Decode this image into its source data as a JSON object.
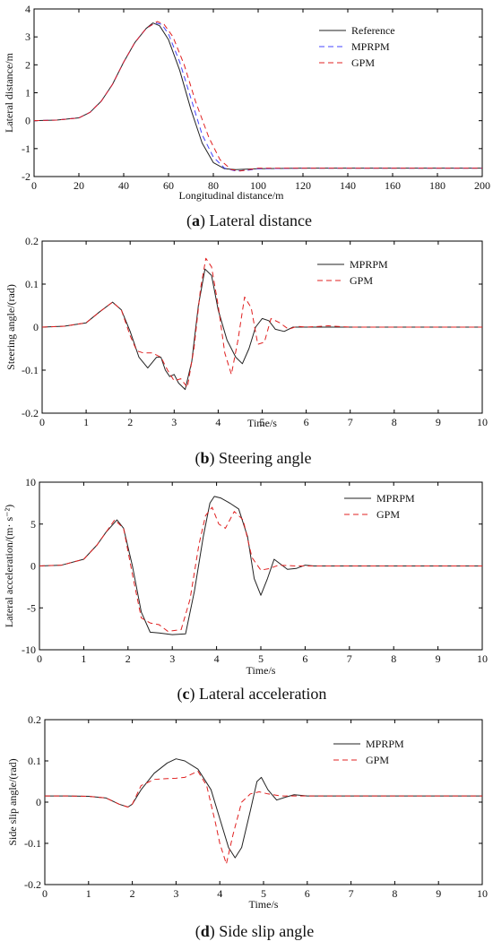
{
  "chart_data": [
    {
      "type": "line",
      "xlabel": "Longitudinal distance/m",
      "ylabel": "Lateral distance/m",
      "xlim": [
        0,
        200
      ],
      "ylim": [
        -2,
        4
      ],
      "xticks": [
        0,
        20,
        40,
        60,
        80,
        100,
        120,
        140,
        160,
        180,
        200
      ],
      "yticks": [
        -2,
        -1,
        0,
        1,
        2,
        3,
        4
      ],
      "legend_position": "top-right",
      "caption_letter": "a",
      "caption_text": " Lateral distance",
      "series": [
        {
          "name": "Reference",
          "color": "#222222",
          "dash": "solid",
          "x": [
            0,
            10,
            20,
            25,
            30,
            35,
            40,
            45,
            50,
            53,
            56,
            60,
            65,
            70,
            75,
            80,
            85,
            90,
            100,
            120,
            150,
            200
          ],
          "y": [
            0,
            0.02,
            0.1,
            0.3,
            0.7,
            1.3,
            2.1,
            2.8,
            3.3,
            3.5,
            3.4,
            2.9,
            1.8,
            0.4,
            -0.8,
            -1.5,
            -1.72,
            -1.75,
            -1.72,
            -1.7,
            -1.7,
            -1.7
          ]
        },
        {
          "name": "MPRPM",
          "color": "#4444ff",
          "dash": "dashed",
          "x": [
            0,
            10,
            20,
            25,
            30,
            35,
            40,
            45,
            50,
            54,
            57,
            60,
            65,
            70,
            75,
            80,
            85,
            90,
            95,
            100,
            120,
            150,
            200
          ],
          "y": [
            0,
            0.02,
            0.1,
            0.3,
            0.7,
            1.3,
            2.1,
            2.8,
            3.3,
            3.5,
            3.45,
            3.1,
            2.1,
            0.8,
            -0.5,
            -1.3,
            -1.7,
            -1.8,
            -1.78,
            -1.72,
            -1.7,
            -1.7,
            -1.7
          ]
        },
        {
          "name": "GPM",
          "color": "#e02020",
          "dash": "dashed",
          "x": [
            0,
            10,
            20,
            25,
            30,
            35,
            40,
            45,
            50,
            55,
            58,
            62,
            67,
            72,
            78,
            83,
            88,
            92,
            100,
            120,
            150,
            200
          ],
          "y": [
            0,
            0.02,
            0.1,
            0.3,
            0.7,
            1.3,
            2.1,
            2.8,
            3.3,
            3.55,
            3.45,
            3.0,
            2.0,
            0.7,
            -0.6,
            -1.4,
            -1.75,
            -1.8,
            -1.7,
            -1.7,
            -1.7,
            -1.7
          ]
        }
      ]
    },
    {
      "type": "line",
      "xlabel": "Time/s",
      "ylabel": "Steering angle/(rad)",
      "xlim": [
        0,
        10
      ],
      "ylim": [
        -0.2,
        0.2
      ],
      "xticks": [
        0,
        1,
        2,
        3,
        4,
        5,
        6,
        7,
        8,
        9,
        10
      ],
      "yticks": [
        -0.2,
        -0.1,
        0,
        0.1,
        0.2
      ],
      "legend_position": "top-right",
      "caption_letter": "b",
      "caption_text": " Steering angle",
      "series": [
        {
          "name": "MPRPM",
          "color": "#222222",
          "dash": "solid",
          "x": [
            0,
            0.5,
            1.0,
            1.3,
            1.6,
            1.8,
            2.0,
            2.2,
            2.4,
            2.6,
            2.7,
            2.8,
            2.9,
            3.0,
            3.1,
            3.25,
            3.4,
            3.55,
            3.7,
            3.85,
            4.0,
            4.2,
            4.4,
            4.55,
            4.7,
            4.85,
            5.0,
            5.15,
            5.3,
            5.5,
            5.7,
            6.0,
            7,
            8,
            9,
            10
          ],
          "y": [
            0,
            0.002,
            0.01,
            0.035,
            0.058,
            0.04,
            -0.01,
            -0.07,
            -0.095,
            -0.07,
            -0.07,
            -0.1,
            -0.115,
            -0.11,
            -0.13,
            -0.145,
            -0.08,
            0.05,
            0.135,
            0.12,
            0.04,
            -0.03,
            -0.07,
            -0.085,
            -0.05,
            0.0,
            0.02,
            0.015,
            -0.005,
            -0.01,
            0.0,
            0.0,
            0,
            0,
            0,
            0
          ]
        },
        {
          "name": "GPM",
          "color": "#e02020",
          "dash": "dashed",
          "x": [
            0,
            0.5,
            1.0,
            1.3,
            1.6,
            1.8,
            2.0,
            2.15,
            2.3,
            2.5,
            2.7,
            2.85,
            3.0,
            3.15,
            3.3,
            3.45,
            3.6,
            3.72,
            3.85,
            4.0,
            4.15,
            4.3,
            4.45,
            4.6,
            4.75,
            4.9,
            5.05,
            5.2,
            5.4,
            5.6,
            5.8,
            6.0,
            6.5,
            7,
            8,
            9,
            10
          ],
          "y": [
            0,
            0.002,
            0.01,
            0.035,
            0.058,
            0.04,
            -0.02,
            -0.055,
            -0.06,
            -0.06,
            -0.07,
            -0.1,
            -0.125,
            -0.12,
            -0.14,
            -0.05,
            0.09,
            0.16,
            0.14,
            0.05,
            -0.06,
            -0.11,
            -0.03,
            0.07,
            0.045,
            -0.04,
            -0.035,
            0.02,
            0.01,
            -0.005,
            0.002,
            0.0,
            0.003,
            0,
            0,
            0,
            0
          ]
        }
      ]
    },
    {
      "type": "line",
      "xlabel": "Time/s",
      "ylabel": "Lateral acceleration/(m· s⁻²)",
      "xlim": [
        0,
        10
      ],
      "ylim": [
        -10,
        10
      ],
      "xticks": [
        0,
        1,
        2,
        3,
        4,
        5,
        6,
        7,
        8,
        9,
        10
      ],
      "yticks": [
        -10,
        -5,
        0,
        5,
        10
      ],
      "legend_position": "top-right",
      "caption_letter": "c",
      "caption_text": " Lateral acceleration",
      "series": [
        {
          "name": "MPRPM",
          "color": "#222222",
          "dash": "solid",
          "x": [
            0,
            0.5,
            1.0,
            1.3,
            1.5,
            1.75,
            1.9,
            2.1,
            2.3,
            2.5,
            2.7,
            3.0,
            3.3,
            3.5,
            3.7,
            3.85,
            3.95,
            4.1,
            4.3,
            4.5,
            4.7,
            4.85,
            5.0,
            5.15,
            5.3,
            5.45,
            5.6,
            5.8,
            6.0,
            6.2,
            7,
            8,
            9,
            10
          ],
          "y": [
            0,
            0.1,
            0.8,
            2.5,
            4.0,
            5.5,
            4.5,
            0,
            -5.5,
            -7.9,
            -8.0,
            -8.2,
            -8.1,
            -3.0,
            3.5,
            7.5,
            8.3,
            8.1,
            7.5,
            6.8,
            3.5,
            -1.5,
            -3.5,
            -1.5,
            0.8,
            0.2,
            -0.4,
            -0.3,
            0.1,
            0.0,
            0,
            0,
            0,
            0
          ]
        },
        {
          "name": "GPM",
          "color": "#e02020",
          "dash": "dashed",
          "x": [
            0,
            0.5,
            1.0,
            1.3,
            1.5,
            1.7,
            1.9,
            2.1,
            2.3,
            2.5,
            2.7,
            2.9,
            3.2,
            3.4,
            3.6,
            3.75,
            3.9,
            4.05,
            4.2,
            4.4,
            4.6,
            4.8,
            5.0,
            5.2,
            5.4,
            5.8,
            6.2,
            7,
            8,
            9,
            10
          ],
          "y": [
            0,
            0.1,
            0.8,
            2.5,
            4.0,
            5.5,
            4.5,
            -1.0,
            -6.2,
            -6.8,
            -7.0,
            -7.8,
            -7.6,
            -4.0,
            2.5,
            6.0,
            7.0,
            5.0,
            4.5,
            6.5,
            5.5,
            1.0,
            -0.5,
            -0.3,
            0.1,
            0.0,
            0.0,
            0,
            0,
            0,
            0
          ]
        }
      ]
    },
    {
      "type": "line",
      "xlabel": "Time/s",
      "ylabel": "Side slip angle/(rad)",
      "xlim": [
        0,
        10
      ],
      "ylim": [
        -0.2,
        0.2
      ],
      "xticks": [
        0,
        1,
        2,
        3,
        4,
        5,
        6,
        7,
        8,
        9,
        10
      ],
      "yticks": [
        -0.2,
        -0.1,
        0,
        0.1,
        0.2
      ],
      "legend_position": "top-right",
      "caption_letter": "d",
      "caption_text": " Side slip angle",
      "series": [
        {
          "name": "MPRPM",
          "color": "#222222",
          "dash": "solid",
          "x": [
            0,
            0.5,
            1.0,
            1.4,
            1.7,
            1.9,
            2.0,
            2.2,
            2.5,
            2.8,
            3.0,
            3.2,
            3.5,
            3.8,
            4.0,
            4.2,
            4.35,
            4.5,
            4.7,
            4.85,
            4.95,
            5.1,
            5.3,
            5.5,
            5.7,
            6.0,
            7,
            8,
            9,
            10
          ],
          "y": [
            0.015,
            0.015,
            0.014,
            0.01,
            -0.005,
            -0.012,
            -0.005,
            0.03,
            0.07,
            0.095,
            0.105,
            0.1,
            0.08,
            0.03,
            -0.04,
            -0.11,
            -0.135,
            -0.11,
            -0.02,
            0.05,
            0.06,
            0.03,
            0.005,
            0.012,
            0.018,
            0.015,
            0.015,
            0.015,
            0.015,
            0.015
          ]
        },
        {
          "name": "GPM",
          "color": "#e02020",
          "dash": "dashed",
          "x": [
            0,
            0.5,
            1.0,
            1.4,
            1.7,
            1.9,
            2.0,
            2.2,
            2.5,
            2.8,
            3.0,
            3.2,
            3.5,
            3.7,
            3.9,
            4.0,
            4.15,
            4.3,
            4.5,
            4.7,
            4.9,
            5.1,
            5.4,
            5.8,
            6.2,
            7,
            8,
            9,
            10
          ],
          "y": [
            0.015,
            0.015,
            0.014,
            0.01,
            -0.005,
            -0.012,
            -0.005,
            0.04,
            0.055,
            0.057,
            0.058,
            0.06,
            0.075,
            0.04,
            -0.05,
            -0.1,
            -0.15,
            -0.08,
            0.0,
            0.02,
            0.025,
            0.02,
            0.015,
            0.015,
            0.015,
            0.015,
            0.015,
            0.015,
            0.015
          ]
        }
      ]
    }
  ]
}
